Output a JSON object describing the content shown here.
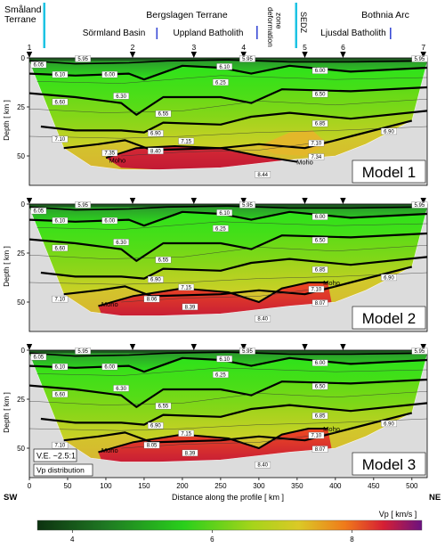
{
  "terranes": {
    "smaland": "Småland\nTerrane",
    "bergslagen": "Bergslagen Terrane",
    "sormland": "Sörmland Basin",
    "uppland": "Uppland Batholith",
    "deformation": "deformation\nzone",
    "sedz": "SEDZ",
    "bothnia": "Bothnia Arc",
    "ljusdal": "Ljusdal Batholith"
  },
  "stations": [
    "1",
    "2",
    "3",
    "4",
    "5",
    "6",
    "7"
  ],
  "moho_label": "Moho",
  "annotations": {
    "ve": "V.E. ~2.5:1",
    "vp": "Vp distribution"
  },
  "colors": {
    "low": "#0f3f10",
    "green": "#27c81c",
    "yellow_green": "#a6cf1c",
    "yellow": "#d3c52a",
    "orange": "#f0651a",
    "red": "#d21e36",
    "purple": "#6c1380",
    "accent_cyan": "#1cc3e3",
    "accent_blue": "#3a4bd6",
    "mask_gray": "#dcdcdc"
  },
  "chart_data": [
    {
      "type": "heatmap",
      "title": "Model 1",
      "xlabel": "",
      "ylabel": "Depth [ km ]",
      "xlim": [
        0,
        520
      ],
      "ylim": [
        0,
        65
      ],
      "xticks": [
        "0",
        "50",
        "100",
        "150",
        "200",
        "250",
        "300",
        "350",
        "400",
        "450",
        "500"
      ],
      "yticks": [
        "0",
        "25",
        "50"
      ],
      "velocity_labels": [
        {
          "x": 12,
          "y": 3,
          "v": "6.05"
        },
        {
          "x": 70,
          "y": 0,
          "v": "5.95"
        },
        {
          "x": 285,
          "y": 0,
          "v": "5.95"
        },
        {
          "x": 510,
          "y": 0,
          "v": "5.95"
        },
        {
          "x": 40,
          "y": 8,
          "v": "6.10"
        },
        {
          "x": 105,
          "y": 8,
          "v": "6.00"
        },
        {
          "x": 255,
          "y": 4,
          "v": "6.10"
        },
        {
          "x": 380,
          "y": 6,
          "v": "6.00"
        },
        {
          "x": 40,
          "y": 22,
          "v": "6.60"
        },
        {
          "x": 120,
          "y": 19,
          "v": "6.30"
        },
        {
          "x": 250,
          "y": 12,
          "v": "6.25"
        },
        {
          "x": 380,
          "y": 18,
          "v": "6.50"
        },
        {
          "x": 165,
          "y": 38,
          "v": "6.90"
        },
        {
          "x": 175,
          "y": 28,
          "v": "6.55"
        },
        {
          "x": 380,
          "y": 33,
          "v": "6.85"
        },
        {
          "x": 470,
          "y": 37,
          "v": "6.90"
        },
        {
          "x": 40,
          "y": 41,
          "v": "7.10"
        },
        {
          "x": 205,
          "y": 42,
          "v": "7.15"
        },
        {
          "x": 375,
          "y": 43,
          "v": "7.10"
        },
        {
          "x": 105,
          "y": 48,
          "v": "7.35"
        },
        {
          "x": 165,
          "y": 47,
          "v": "8.40"
        },
        {
          "x": 305,
          "y": 59,
          "v": "8.44"
        },
        {
          "x": 375,
          "y": 50,
          "v": "7.34"
        }
      ]
    },
    {
      "type": "heatmap",
      "title": "Model 2",
      "xlabel": "",
      "ylabel": "Depth [ km ]",
      "xlim": [
        0,
        520
      ],
      "ylim": [
        0,
        65
      ],
      "xticks": [
        "0",
        "50",
        "100",
        "150",
        "200",
        "250",
        "300",
        "350",
        "400",
        "450",
        "500"
      ],
      "yticks": [
        "0",
        "25",
        "50"
      ],
      "velocity_labels": [
        {
          "x": 12,
          "y": 3,
          "v": "6.05"
        },
        {
          "x": 70,
          "y": 0,
          "v": "5.95"
        },
        {
          "x": 285,
          "y": 0,
          "v": "5.95"
        },
        {
          "x": 510,
          "y": 0,
          "v": "5.95"
        },
        {
          "x": 40,
          "y": 8,
          "v": "6.10"
        },
        {
          "x": 105,
          "y": 8,
          "v": "6.00"
        },
        {
          "x": 255,
          "y": 4,
          "v": "6.10"
        },
        {
          "x": 380,
          "y": 6,
          "v": "6.00"
        },
        {
          "x": 40,
          "y": 22,
          "v": "6.60"
        },
        {
          "x": 120,
          "y": 19,
          "v": "6.30"
        },
        {
          "x": 250,
          "y": 12,
          "v": "6.25"
        },
        {
          "x": 380,
          "y": 18,
          "v": "6.50"
        },
        {
          "x": 165,
          "y": 38,
          "v": "6.90"
        },
        {
          "x": 175,
          "y": 28,
          "v": "6.55"
        },
        {
          "x": 380,
          "y": 33,
          "v": "6.85"
        },
        {
          "x": 470,
          "y": 37,
          "v": "6.90"
        },
        {
          "x": 40,
          "y": 48,
          "v": "7.10"
        },
        {
          "x": 205,
          "y": 42,
          "v": "7.15"
        },
        {
          "x": 375,
          "y": 43,
          "v": "7.10"
        },
        {
          "x": 160,
          "y": 48,
          "v": "8.06"
        },
        {
          "x": 210,
          "y": 52,
          "v": "8.39"
        },
        {
          "x": 305,
          "y": 58,
          "v": "8.40"
        },
        {
          "x": 380,
          "y": 50,
          "v": "8.07"
        }
      ]
    },
    {
      "type": "heatmap",
      "title": "Model 3",
      "xlabel": "Distance along the profile [ km ]",
      "ylabel": "Depth [ km ]",
      "xlim": [
        0,
        520
      ],
      "ylim": [
        0,
        65
      ],
      "xticks": [
        "0",
        "50",
        "100",
        "150",
        "200",
        "250",
        "300",
        "350",
        "400",
        "450",
        "500"
      ],
      "yticks": [
        "0",
        "25",
        "50"
      ],
      "velocity_labels": [
        {
          "x": 12,
          "y": 3,
          "v": "6.05"
        },
        {
          "x": 70,
          "y": 0,
          "v": "5.95"
        },
        {
          "x": 285,
          "y": 0,
          "v": "5.95"
        },
        {
          "x": 510,
          "y": 0,
          "v": "5.95"
        },
        {
          "x": 40,
          "y": 8,
          "v": "6.10"
        },
        {
          "x": 105,
          "y": 8,
          "v": "6.00"
        },
        {
          "x": 255,
          "y": 4,
          "v": "6.10"
        },
        {
          "x": 380,
          "y": 6,
          "v": "6.00"
        },
        {
          "x": 40,
          "y": 22,
          "v": "6.60"
        },
        {
          "x": 120,
          "y": 19,
          "v": "6.30"
        },
        {
          "x": 250,
          "y": 12,
          "v": "6.25"
        },
        {
          "x": 380,
          "y": 18,
          "v": "6.50"
        },
        {
          "x": 165,
          "y": 38,
          "v": "6.90"
        },
        {
          "x": 175,
          "y": 28,
          "v": "6.55"
        },
        {
          "x": 380,
          "y": 33,
          "v": "6.85"
        },
        {
          "x": 470,
          "y": 37,
          "v": "6.90"
        },
        {
          "x": 40,
          "y": 48,
          "v": "7.10"
        },
        {
          "x": 205,
          "y": 42,
          "v": "7.15"
        },
        {
          "x": 375,
          "y": 43,
          "v": "7.10"
        },
        {
          "x": 160,
          "y": 48,
          "v": "8.05"
        },
        {
          "x": 210,
          "y": 52,
          "v": "8.39"
        },
        {
          "x": 305,
          "y": 58,
          "v": "8.40"
        },
        {
          "x": 380,
          "y": 50,
          "v": "8.07"
        }
      ]
    }
  ],
  "axis_ends": {
    "left": "SW",
    "right": "NE"
  },
  "colorbar": {
    "title": "Vp [ km/s ]",
    "ticks": [
      "4",
      "6",
      "8"
    ],
    "range": [
      3.5,
      9
    ]
  }
}
